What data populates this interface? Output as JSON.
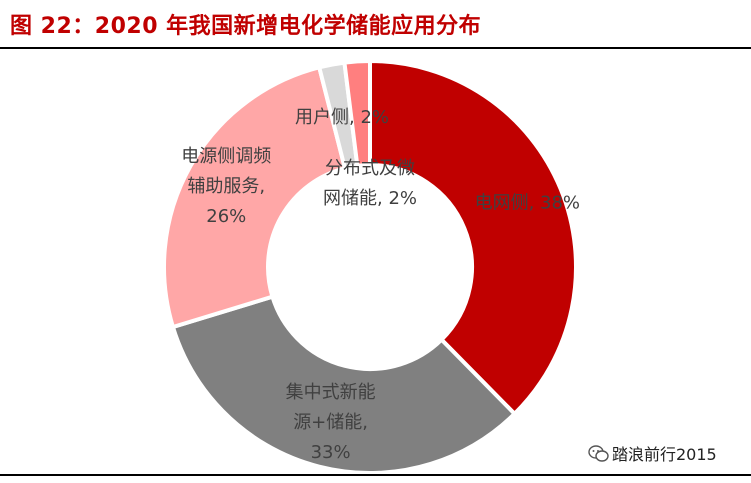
{
  "header": {
    "title": "图 22：2020 年我国新增电化学储能应用分布"
  },
  "watermark": {
    "text": "踏浪前行2015",
    "icon": "wechat-icon"
  },
  "chart_data": {
    "type": "pie",
    "style": "donut",
    "title": "图 22：2020 年我国新增电化学储能应用分布",
    "categories": [
      "电网侧",
      "集中式新能源+储能",
      "电源侧调频辅助服务",
      "用户侧",
      "分布式及微网储能"
    ],
    "values": [
      38,
      33,
      26,
      2,
      2
    ],
    "unit": "%",
    "colors": [
      "#c00000",
      "#808080",
      "#ffa7a7",
      "#d9d9d9",
      "#ff7f7f"
    ],
    "labels": [
      [
        "电网侧, 38%"
      ],
      [
        "集中式新能",
        "源+储能,",
        "33%"
      ],
      [
        "电源侧调频",
        "辅助服务,",
        "26%"
      ],
      [
        "用户侧, 2%"
      ],
      [
        "分布式及微",
        "网储能, 2%"
      ]
    ]
  }
}
